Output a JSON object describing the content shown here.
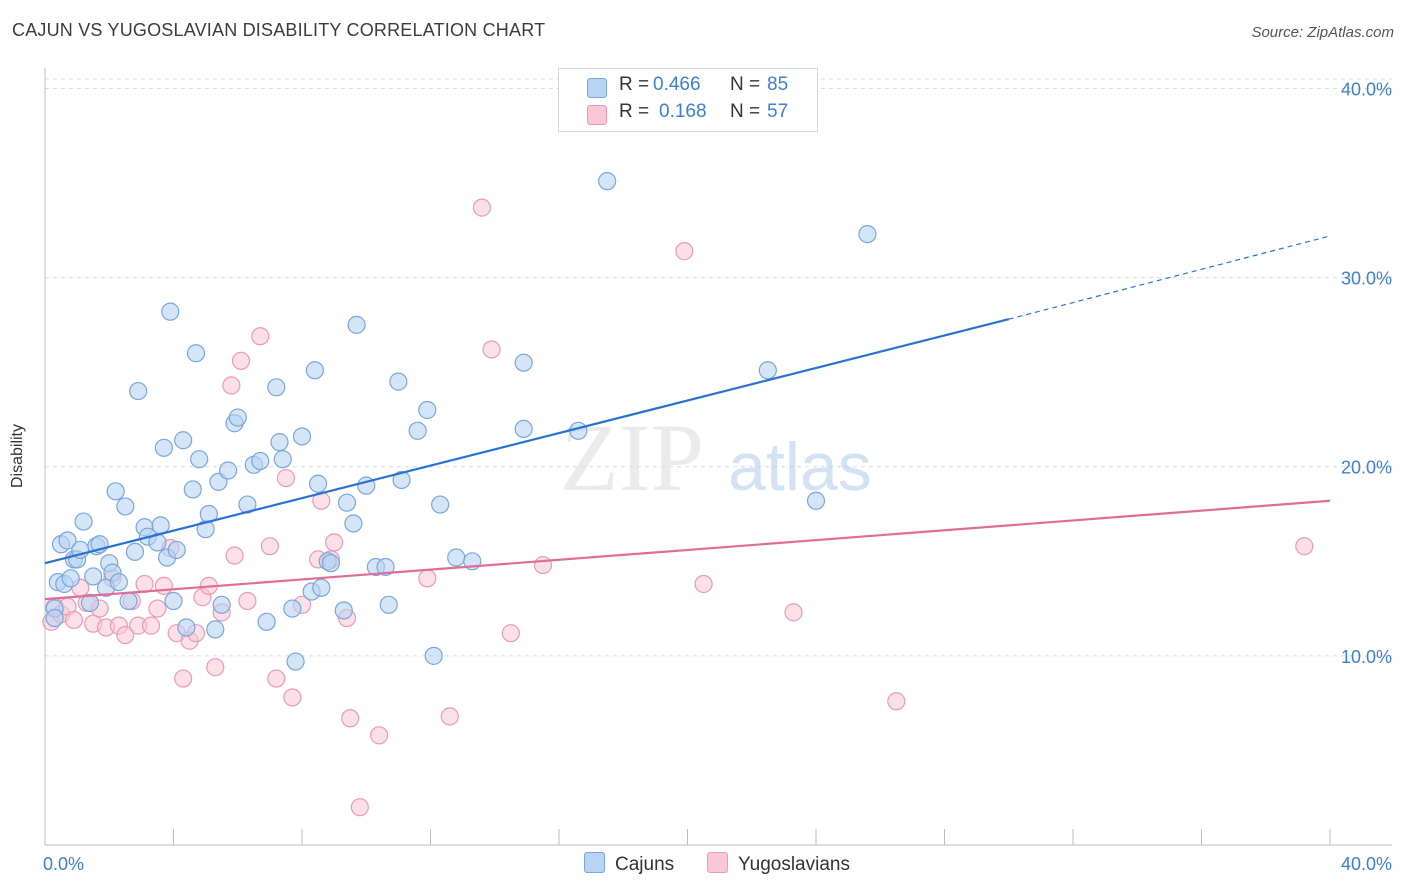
{
  "header": {
    "title": "CAJUN VS YUGOSLAVIAN DISABILITY CORRELATION CHART",
    "source": "Source: ZipAtlas.com"
  },
  "legend": {
    "r_label": "R =",
    "n_label": "N =",
    "cajuns": {
      "r": "0.466",
      "n": "85"
    },
    "yugoslavians": {
      "r": "0.168",
      "n": "57"
    }
  },
  "watermark": {
    "zip": "ZIP",
    "atlas": "atlas"
  },
  "colors": {
    "cajuns_fill": "#b8d3f4",
    "cajuns_stroke": "#7aa6dc",
    "cajuns_line": "#2a72d0",
    "yugo_fill": "#f8c6d4",
    "yugo_stroke": "#eb9ab3",
    "yugo_line": "#e06d97",
    "tick_text": "#3d7fd1",
    "grid": "#dcdcdc"
  },
  "chart_data": {
    "type": "scatter",
    "title": "CAJUN VS YUGOSLAVIAN DISABILITY CORRELATION CHART",
    "xlabel": "",
    "ylabel": "Disability",
    "xlim": [
      0,
      40
    ],
    "ylim": [
      0,
      40.5
    ],
    "x_tick_labels": [
      "0.0%",
      "40.0%"
    ],
    "y_ticks": [
      10,
      20,
      30,
      40
    ],
    "y_tick_labels": [
      "10.0%",
      "20.0%",
      "30.0%",
      "40.0%"
    ],
    "grid": "horizontal dashed",
    "legend_position": "top-center",
    "series": [
      {
        "name": "Cajuns",
        "r": 0.466,
        "n": 85,
        "trend": {
          "x0": 0,
          "y0": 14.9,
          "x1": 30,
          "y1": 27.8,
          "dashed_to_x": 40,
          "dashed_to_y": 32.2
        },
        "points": [
          [
            0.3,
            12.5
          ],
          [
            0.3,
            12.0
          ],
          [
            0.4,
            13.9
          ],
          [
            0.5,
            15.9
          ],
          [
            0.6,
            13.8
          ],
          [
            0.7,
            16.1
          ],
          [
            0.9,
            15.1
          ],
          [
            1.0,
            15.1
          ],
          [
            1.1,
            15.6
          ],
          [
            1.2,
            17.1
          ],
          [
            1.4,
            12.8
          ],
          [
            1.5,
            14.2
          ],
          [
            1.6,
            15.8
          ],
          [
            1.7,
            15.9
          ],
          [
            1.9,
            13.6
          ],
          [
            2.0,
            14.9
          ],
          [
            2.1,
            14.4
          ],
          [
            2.2,
            18.7
          ],
          [
            2.3,
            13.9
          ],
          [
            2.5,
            17.9
          ],
          [
            2.6,
            12.9
          ],
          [
            2.8,
            15.5
          ],
          [
            2.9,
            24.0
          ],
          [
            3.1,
            16.8
          ],
          [
            3.2,
            16.3
          ],
          [
            3.5,
            16.0
          ],
          [
            3.6,
            16.9
          ],
          [
            3.7,
            21.0
          ],
          [
            3.8,
            15.2
          ],
          [
            3.9,
            28.2
          ],
          [
            4.0,
            12.9
          ],
          [
            4.1,
            15.6
          ],
          [
            4.3,
            21.4
          ],
          [
            4.4,
            11.5
          ],
          [
            4.6,
            18.8
          ],
          [
            4.7,
            26.0
          ],
          [
            4.8,
            20.4
          ],
          [
            5.0,
            16.7
          ],
          [
            5.1,
            17.5
          ],
          [
            5.3,
            11.4
          ],
          [
            5.4,
            19.2
          ],
          [
            5.5,
            12.7
          ],
          [
            5.7,
            19.8
          ],
          [
            5.9,
            22.3
          ],
          [
            6.0,
            22.6
          ],
          [
            6.3,
            18.0
          ],
          [
            6.5,
            20.1
          ],
          [
            6.7,
            20.3
          ],
          [
            6.9,
            11.8
          ],
          [
            7.2,
            24.2
          ],
          [
            7.3,
            21.3
          ],
          [
            7.4,
            20.4
          ],
          [
            7.7,
            12.5
          ],
          [
            7.8,
            9.7
          ],
          [
            8.0,
            21.6
          ],
          [
            8.3,
            13.4
          ],
          [
            8.4,
            25.1
          ],
          [
            8.5,
            19.1
          ],
          [
            8.6,
            13.6
          ],
          [
            8.8,
            15.0
          ],
          [
            8.9,
            14.9
          ],
          [
            9.3,
            12.4
          ],
          [
            9.4,
            18.1
          ],
          [
            9.6,
            17.0
          ],
          [
            9.7,
            27.5
          ],
          [
            10.0,
            19.0
          ],
          [
            10.3,
            14.7
          ],
          [
            10.6,
            14.7
          ],
          [
            10.7,
            12.7
          ],
          [
            11.0,
            24.5
          ],
          [
            11.1,
            19.3
          ],
          [
            11.6,
            21.9
          ],
          [
            11.9,
            23.0
          ],
          [
            12.1,
            10.0
          ],
          [
            12.3,
            18.0
          ],
          [
            12.8,
            15.2
          ],
          [
            13.3,
            15.0
          ],
          [
            14.9,
            25.5
          ],
          [
            14.9,
            22.0
          ],
          [
            16.6,
            21.9
          ],
          [
            17.5,
            35.1
          ],
          [
            22.5,
            25.1
          ],
          [
            24.0,
            18.2
          ],
          [
            25.6,
            32.3
          ],
          [
            0.8,
            14.1
          ]
        ]
      },
      {
        "name": "Yugoslavians",
        "r": 0.168,
        "n": 57,
        "trend": {
          "x0": 0,
          "y0": 13.0,
          "x1": 40,
          "y1": 18.2
        },
        "points": [
          [
            0.2,
            11.8
          ],
          [
            0.3,
            12.6
          ],
          [
            0.5,
            12.2
          ],
          [
            0.7,
            12.6
          ],
          [
            0.9,
            11.9
          ],
          [
            1.1,
            13.6
          ],
          [
            1.3,
            12.8
          ],
          [
            1.5,
            11.7
          ],
          [
            1.7,
            12.5
          ],
          [
            1.9,
            11.5
          ],
          [
            2.1,
            14.1
          ],
          [
            2.3,
            11.6
          ],
          [
            2.5,
            11.1
          ],
          [
            2.7,
            12.9
          ],
          [
            2.9,
            11.6
          ],
          [
            3.1,
            13.8
          ],
          [
            3.3,
            11.6
          ],
          [
            3.5,
            12.5
          ],
          [
            3.7,
            13.7
          ],
          [
            3.9,
            15.7
          ],
          [
            4.1,
            11.2
          ],
          [
            4.3,
            8.8
          ],
          [
            4.5,
            10.8
          ],
          [
            4.7,
            11.2
          ],
          [
            4.9,
            13.1
          ],
          [
            5.1,
            13.7
          ],
          [
            5.3,
            9.4
          ],
          [
            5.5,
            12.3
          ],
          [
            5.8,
            24.3
          ],
          [
            5.9,
            15.3
          ],
          [
            6.1,
            25.6
          ],
          [
            6.3,
            12.9
          ],
          [
            6.7,
            26.9
          ],
          [
            7.0,
            15.8
          ],
          [
            7.2,
            8.8
          ],
          [
            7.5,
            19.4
          ],
          [
            7.7,
            7.8
          ],
          [
            8.0,
            12.7
          ],
          [
            8.5,
            15.1
          ],
          [
            8.6,
            18.2
          ],
          [
            8.9,
            15.1
          ],
          [
            9.0,
            16.0
          ],
          [
            9.4,
            12.0
          ],
          [
            9.5,
            6.7
          ],
          [
            9.8,
            2.0
          ],
          [
            10.4,
            5.8
          ],
          [
            11.9,
            14.1
          ],
          [
            12.6,
            6.8
          ],
          [
            13.6,
            33.7
          ],
          [
            13.9,
            26.2
          ],
          [
            14.5,
            11.2
          ],
          [
            15.5,
            14.8
          ],
          [
            19.9,
            31.4
          ],
          [
            20.5,
            13.8
          ],
          [
            23.3,
            12.3
          ],
          [
            26.5,
            7.6
          ],
          [
            39.2,
            15.8
          ]
        ]
      }
    ]
  }
}
